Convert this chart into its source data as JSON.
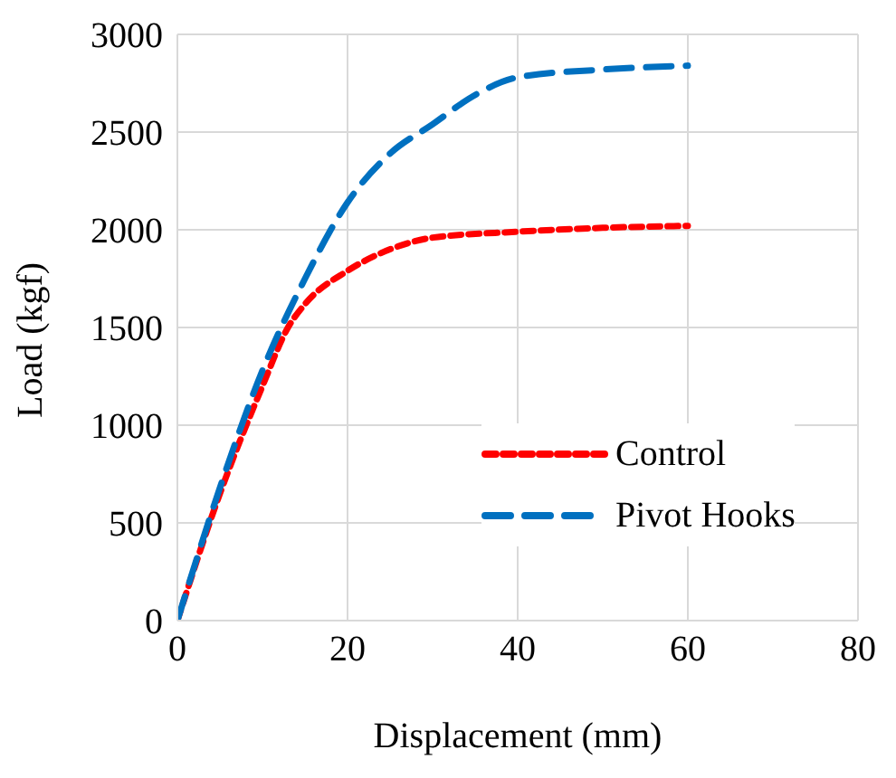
{
  "chart_data": {
    "type": "line",
    "xlabel": "Displacement (mm)",
    "ylabel": "Load (kgf)",
    "xlim": [
      0,
      80
    ],
    "xticks": [
      0,
      20,
      40,
      60,
      80
    ],
    "ylim": [
      0,
      3000
    ],
    "yticks": [
      0,
      500,
      1000,
      1500,
      2000,
      2500,
      3000
    ],
    "grid": true,
    "legend": "bottom right",
    "marker": "none",
    "series": [
      {
        "name": "Control",
        "color": "#ff0000",
        "line_style": "dotted",
        "x": [
          0,
          5,
          10,
          13,
          15,
          20,
          25,
          30,
          40,
          50,
          60
        ],
        "values": [
          0,
          650,
          1200,
          1500,
          1620,
          1790,
          1900,
          1960,
          1990,
          2010,
          2020
        ]
      },
      {
        "name": "Pivot Hooks",
        "color": "#0070c0",
        "line_style": "dashed",
        "x": [
          0,
          5,
          10,
          15,
          20,
          25,
          30,
          35,
          40,
          50,
          60
        ],
        "values": [
          0,
          680,
          1280,
          1750,
          2140,
          2390,
          2540,
          2690,
          2780,
          2820,
          2840
        ]
      }
    ]
  }
}
